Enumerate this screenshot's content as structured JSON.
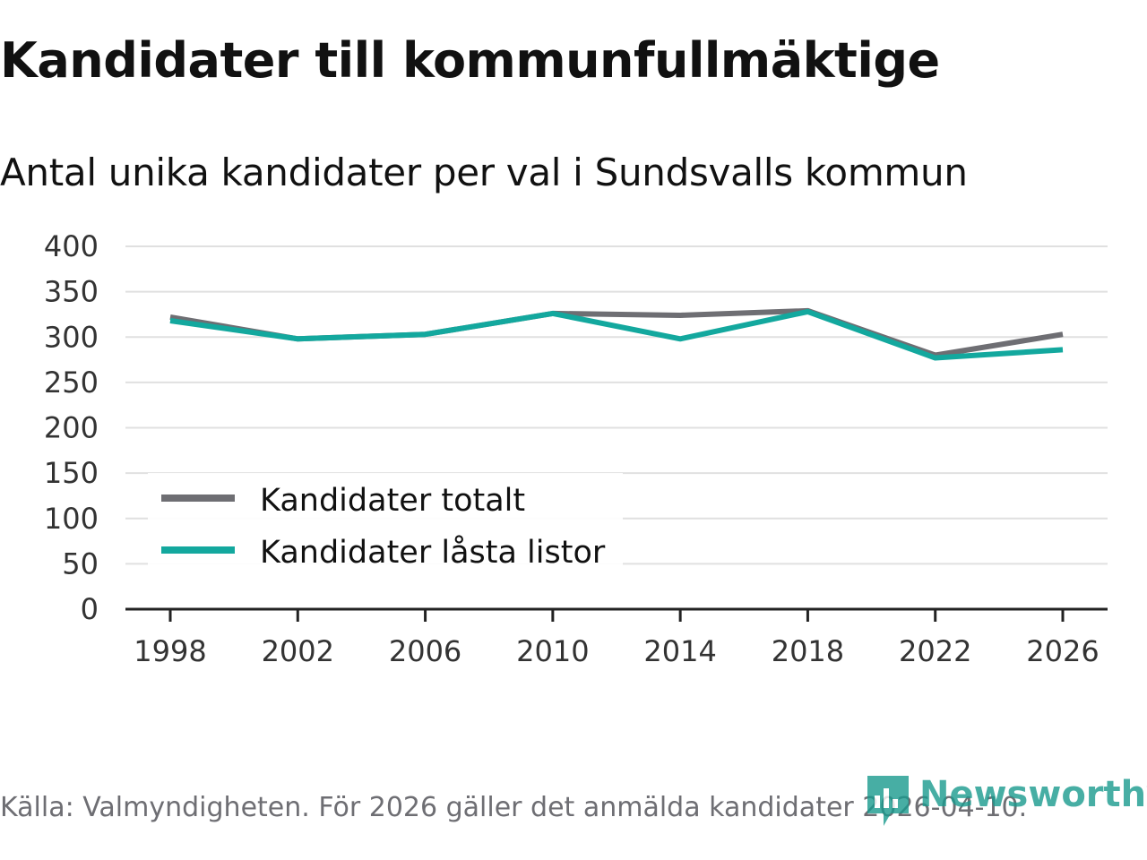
{
  "chart_data": {
    "type": "line",
    "title": "Kandidater till kommunfullmäktige",
    "subtitle": "Antal unika kandidater per val i Sundsvalls kommun",
    "x": [
      "1998",
      "2002",
      "2006",
      "2010",
      "2014",
      "2018",
      "2022",
      "2026"
    ],
    "y_ticks": [
      "0",
      "50",
      "100",
      "150",
      "200",
      "250",
      "300",
      "350",
      "400"
    ],
    "ylim": [
      0,
      400
    ],
    "grid": true,
    "legend_position": "bottom-left",
    "series": [
      {
        "name": "Kandidater totalt",
        "color": "#6e6e73",
        "values": [
          322,
          298,
          303,
          326,
          324,
          329,
          280,
          303
        ]
      },
      {
        "name": "Kandidater låsta listor",
        "color": "#13a89e",
        "values": [
          318,
          298,
          303,
          326,
          298,
          328,
          277,
          286
        ]
      }
    ]
  },
  "source": "Källa: Valmyndigheten. För 2026 gäller det anmälda kandidater 2026-04-10.",
  "brand": {
    "name": "Newsworthy",
    "icon": "newsworthy-logo-icon",
    "color": "#1a9a8e"
  }
}
